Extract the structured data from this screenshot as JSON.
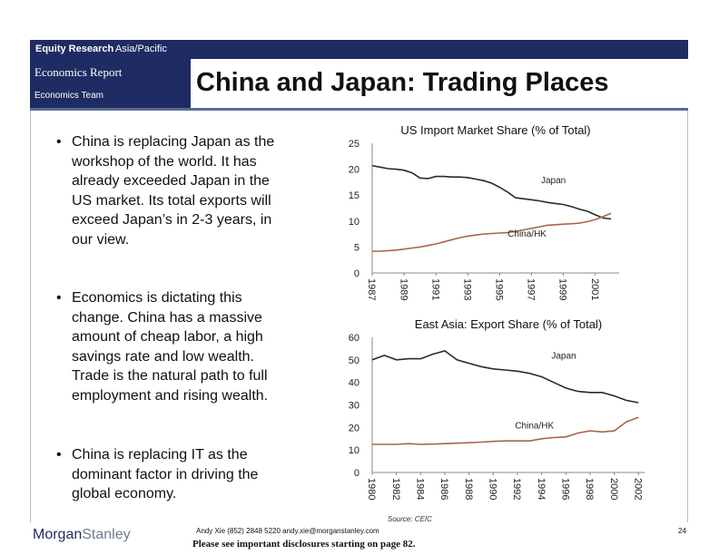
{
  "header": {
    "equity_research": "Equity Research",
    "region": "Asia/Pacific",
    "report_type": "Economics Report",
    "team": "Economics Team",
    "title": "China and Japan: Trading Places"
  },
  "bullets": [
    {
      "lines": [
        "China is replacing Japan as the",
        "workshop of the world.  It has",
        "already exceeded Japan in the",
        "US market.  Its total exports will",
        "exceed Japan’s in 2-3 years, in",
        "our view."
      ]
    },
    {
      "lines": [
        "Economics is dictating this",
        "change.  China has a massive",
        "amount of cheap labor, a high",
        "savings rate and low wealth.",
        "Trade is the natural path to full",
        "employment and rising wealth."
      ]
    },
    {
      "lines": [
        "China is replacing IT as the",
        "dominant factor in driving the",
        "global economy."
      ]
    }
  ],
  "chart_data": [
    {
      "type": "line",
      "title": "US Import Market Share (% of Total)",
      "xlabel": "",
      "ylabel": "",
      "ylim": [
        0,
        25
      ],
      "yticks": [
        0,
        5,
        10,
        15,
        20,
        25
      ],
      "xlim": [
        1987,
        2002.5
      ],
      "xtick_labels": [
        "1987",
        "1989",
        "1991",
        "1993",
        "1995",
        "1997",
        "1999",
        "2001"
      ],
      "x": [
        1987,
        1987.5,
        1988,
        1988.5,
        1989,
        1989.5,
        1990,
        1990.5,
        1991,
        1991.5,
        1992,
        1992.5,
        1993,
        1993.5,
        1994,
        1994.5,
        1995,
        1995.5,
        1996,
        1996.5,
        1997,
        1997.5,
        1998,
        1998.5,
        1999,
        1999.5,
        2000,
        2000.5,
        2001,
        2001.5,
        2002
      ],
      "series": [
        {
          "name": "Japan",
          "label_at": [
            1997.6,
            17.3
          ],
          "values": [
            20.7,
            20.4,
            20.1,
            20.0,
            19.8,
            19.3,
            18.3,
            18.2,
            18.6,
            18.6,
            18.5,
            18.5,
            18.4,
            18.1,
            17.8,
            17.3,
            16.5,
            15.6,
            14.5,
            14.3,
            14.1,
            13.9,
            13.6,
            13.4,
            13.2,
            12.8,
            12.3,
            11.9,
            11.2,
            10.6,
            10.4
          ]
        },
        {
          "name": "China/HK",
          "label_at": [
            1995.5,
            7.0
          ],
          "values": [
            4.2,
            4.2,
            4.3,
            4.4,
            4.6,
            4.8,
            5.0,
            5.3,
            5.6,
            6.0,
            6.4,
            6.8,
            7.1,
            7.3,
            7.5,
            7.6,
            7.7,
            7.8,
            8.0,
            8.3,
            8.6,
            8.9,
            9.2,
            9.3,
            9.4,
            9.5,
            9.6,
            9.9,
            10.3,
            10.9,
            11.5
          ]
        }
      ]
    },
    {
      "type": "line",
      "title": "East Asia: Export Share (% of Total)",
      "xlabel": "",
      "ylabel": "",
      "ylim": [
        0,
        60
      ],
      "yticks": [
        0,
        10,
        20,
        30,
        40,
        50,
        60
      ],
      "xlim": [
        1980,
        2002.5
      ],
      "xtick_labels": [
        "1980",
        "1982",
        "1984",
        "1986",
        "1988",
        "1990",
        "1992",
        "1994",
        "1996",
        "1998",
        "2000",
        "2002"
      ],
      "x": [
        1980,
        1981,
        1982,
        1983,
        1984,
        1985,
        1986,
        1987,
        1988,
        1989,
        1990,
        1991,
        1992,
        1993,
        1994,
        1995,
        1996,
        1997,
        1998,
        1999,
        2000,
        2001,
        2002
      ],
      "series": [
        {
          "name": "Japan",
          "label_at": [
            1994.8,
            50.5
          ],
          "values": [
            50.0,
            52.0,
            50.0,
            50.5,
            50.5,
            52.5,
            54.0,
            50.0,
            48.5,
            47.0,
            46.0,
            45.5,
            45.0,
            44.0,
            42.5,
            40.0,
            37.5,
            36.0,
            35.5,
            35.5,
            34.0,
            32.0,
            31.0
          ]
        },
        {
          "name": "China/HK",
          "label_at": [
            1991.8,
            19.5
          ],
          "values": [
            12.5,
            12.5,
            12.5,
            12.8,
            12.5,
            12.6,
            12.8,
            13.0,
            13.2,
            13.5,
            13.8,
            14.0,
            14.0,
            14.0,
            15.0,
            15.5,
            15.8,
            17.5,
            18.5,
            18.0,
            18.5,
            22.5,
            24.5
          ]
        }
      ],
      "source": "Source:  CEIC"
    }
  ],
  "colors": {
    "navy": "#1f2b63",
    "japan": "#2b2b2b",
    "china": "#a9654a"
  },
  "footer": {
    "logo_morgan": "Morgan",
    "logo_stanley": "Stanley",
    "contact": "Andy Xie (852) 2848 5220  andy.xie@morganstanley.com",
    "disclosure": "Please see important disclosures starting on page 82.",
    "page": "24"
  }
}
